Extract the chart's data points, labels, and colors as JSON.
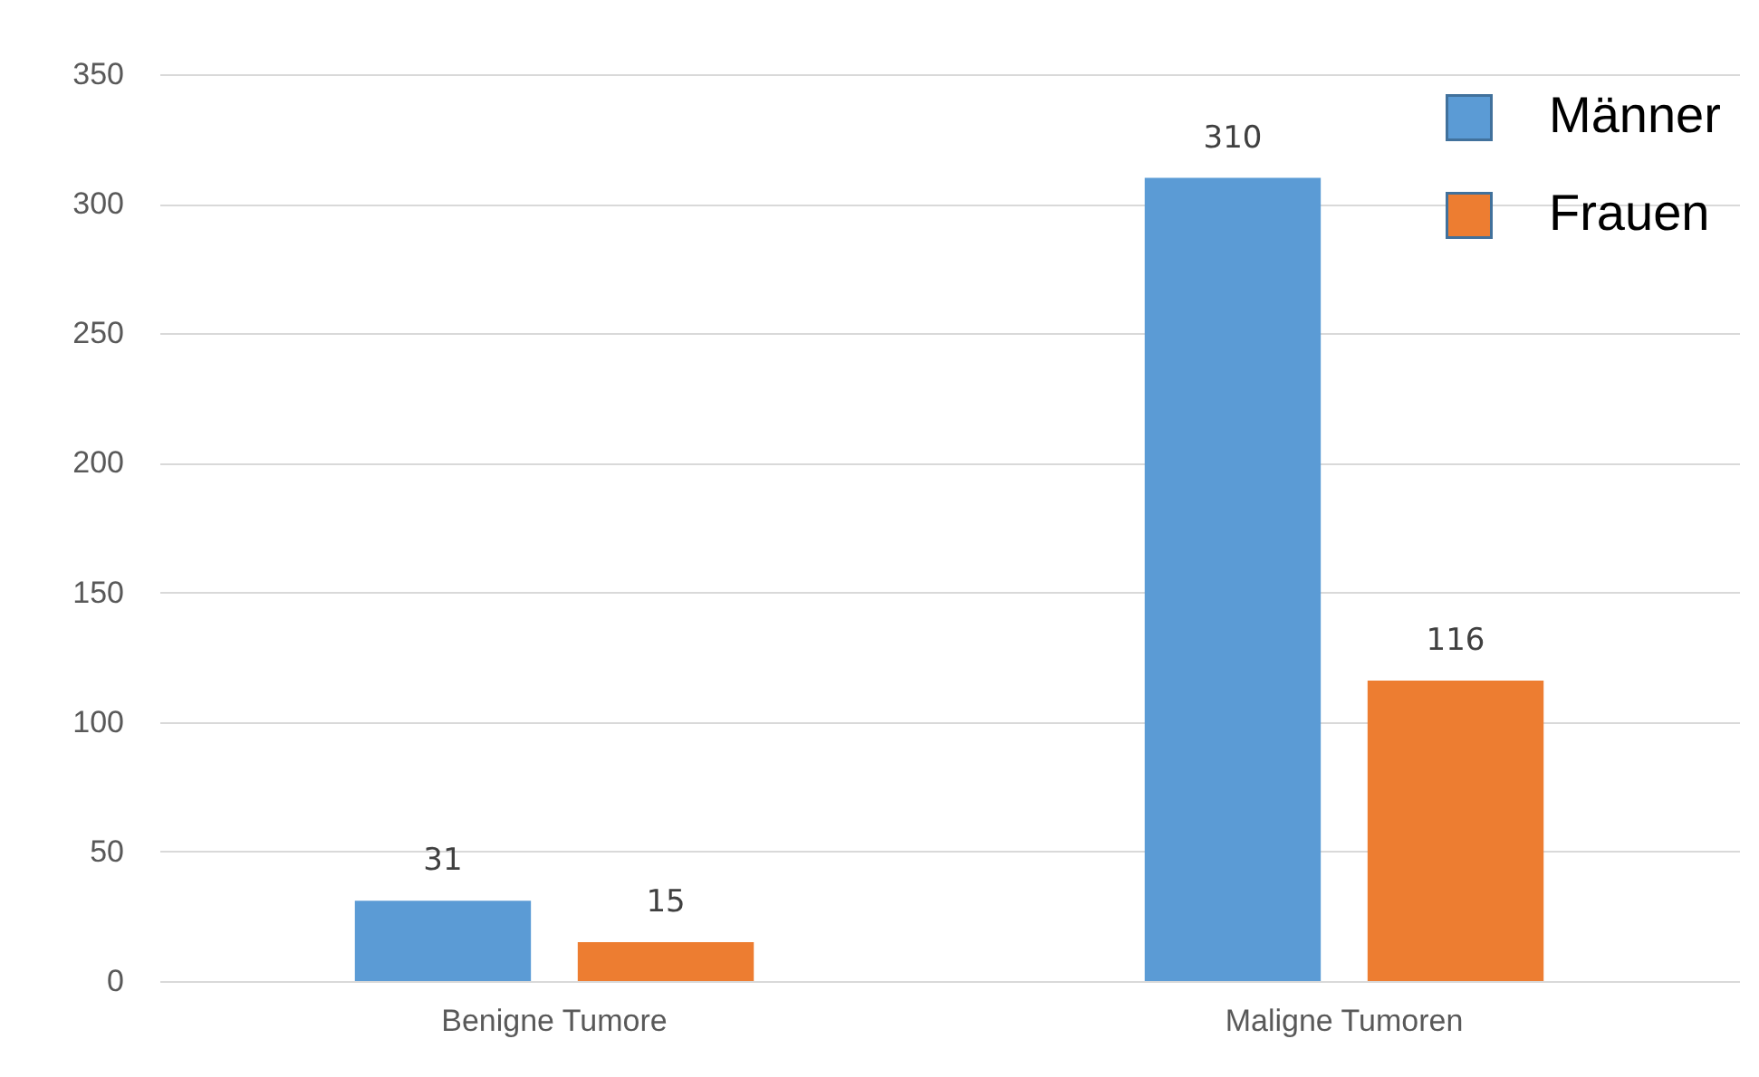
{
  "chart_data": {
    "type": "bar",
    "categories": [
      "Benigne Tumore",
      "Maligne Tumoren"
    ],
    "series": [
      {
        "name": "Männer",
        "color": "#5b9bd5",
        "values": [
          31,
          310
        ]
      },
      {
        "name": "Frauen",
        "color": "#ed7d31",
        "values": [
          15,
          116
        ]
      }
    ],
    "ylim": [
      0,
      350
    ],
    "yticks": [
      0,
      50,
      100,
      150,
      200,
      250,
      300,
      350
    ],
    "grid": "y",
    "legend": "top right",
    "data_labels": true
  }
}
